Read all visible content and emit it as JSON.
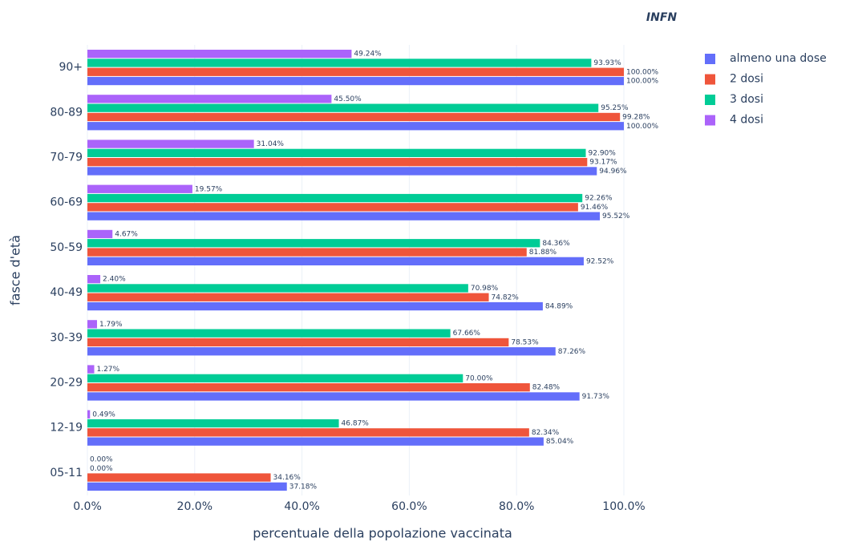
{
  "chart_data": {
    "type": "hbar",
    "logo": "INFN",
    "xlabel": "percentuale della popolazione vaccinata",
    "ylabel": "fasce d'età",
    "categories": [
      "90+",
      "80-89",
      "70-79",
      "60-69",
      "50-59",
      "40-49",
      "30-39",
      "20-29",
      "12-19",
      "05-11"
    ],
    "series": [
      {
        "name": "almeno una dose",
        "color": "#636efa",
        "values": [
          100.0,
          100.0,
          94.96,
          95.52,
          92.52,
          84.89,
          87.26,
          91.73,
          85.04,
          37.18
        ],
        "value_labels": [
          "100.00%",
          "100.00%",
          "94.96%",
          "95.52%",
          "92.52%",
          "84.89%",
          "87.26%",
          "91.73%",
          "85.04%",
          "37.18%"
        ]
      },
      {
        "name": "2 dosi",
        "color": "#ef553b",
        "values": [
          100.0,
          99.28,
          93.17,
          91.46,
          81.88,
          74.82,
          78.53,
          82.48,
          82.34,
          34.16
        ],
        "value_labels": [
          "100.00%",
          "99.28%",
          "93.17%",
          "91.46%",
          "81.88%",
          "74.82%",
          "78.53%",
          "82.48%",
          "82.34%",
          "34.16%"
        ]
      },
      {
        "name": "3 dosi",
        "color": "#00cc96",
        "values": [
          93.93,
          95.25,
          92.9,
          92.26,
          84.36,
          70.98,
          67.66,
          70.0,
          46.87,
          0.0
        ],
        "value_labels": [
          "93.93%",
          "95.25%",
          "92.90%",
          "92.26%",
          "84.36%",
          "70.98%",
          "67.66%",
          "70.00%",
          "46.87%",
          "0.00%"
        ]
      },
      {
        "name": "4 dosi",
        "color": "#ab63fa",
        "values": [
          49.24,
          45.5,
          31.04,
          19.57,
          4.67,
          2.4,
          1.79,
          1.27,
          0.49,
          0.0
        ],
        "value_labels": [
          "49.24%",
          "45.50%",
          "31.04%",
          "19.57%",
          "4.67%",
          "2.40%",
          "1.79%",
          "1.27%",
          "0.49%",
          "0.00%"
        ]
      }
    ],
    "xlim": [
      0,
      108
    ],
    "xticks": [
      {
        "value": 0,
        "label": "0.0%"
      },
      {
        "value": 20,
        "label": "20.0%"
      },
      {
        "value": 40,
        "label": "40.0%"
      },
      {
        "value": 60,
        "label": "60.0%"
      },
      {
        "value": 80,
        "label": "80.0%"
      },
      {
        "value": 100,
        "label": "100.0%"
      }
    ],
    "grid": true
  }
}
